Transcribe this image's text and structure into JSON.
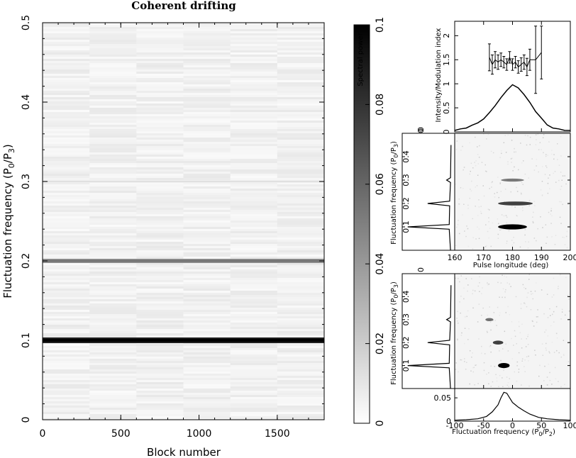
{
  "chart_data": [
    {
      "type": "heatmap",
      "id": "main",
      "title": "Coherent drifting",
      "xlabel": "Block number",
      "ylabel": "Fluctuation frequency (P0/P3)",
      "xlim": [
        0,
        1800
      ],
      "ylim": [
        0,
        0.5
      ],
      "xticks": [
        "0",
        "500",
        "1000",
        "1500"
      ],
      "yticks": [
        "0",
        "0.1",
        "0.2",
        "0.3",
        "0.4",
        "0.5"
      ],
      "features": [
        {
          "y": 0.1,
          "power": 0.1
        },
        {
          "y": 0.2,
          "power": 0.055
        },
        {
          "y": 0.3,
          "power": 0.012
        }
      ]
    },
    {
      "type": "heatmap",
      "id": "colorbar",
      "ylabel": "Spectral power",
      "ylim": [
        0,
        0.1
      ],
      "yticks": [
        "0",
        "0.02",
        "0.04",
        "0.06",
        "0.08",
        "0.1"
      ]
    },
    {
      "type": "line",
      "id": "profile",
      "ylabel": "Intensity/Modulation index",
      "xlim": [
        160,
        200
      ],
      "ylim": [
        0,
        2.3
      ],
      "yticks": [
        "0",
        "0.5",
        "1",
        "1.5",
        "2"
      ],
      "top_label": "0",
      "series": [
        {
          "role": "intensity",
          "x": [
            160,
            162,
            164,
            166,
            168,
            170,
            172,
            174,
            176,
            178,
            180,
            182,
            184,
            186,
            188,
            190,
            192,
            194,
            196,
            198,
            200
          ],
          "values": [
            0.03,
            0.05,
            0.08,
            0.12,
            0.18,
            0.27,
            0.4,
            0.55,
            0.72,
            0.88,
            0.98,
            0.92,
            0.78,
            0.6,
            0.42,
            0.27,
            0.16,
            0.09,
            0.05,
            0.04,
            0.03
          ]
        },
        {
          "role": "modulation_index",
          "x": [
            172,
            173,
            174,
            175,
            176,
            177,
            178,
            179,
            180,
            181,
            182,
            183,
            184,
            185,
            186,
            188,
            190
          ],
          "values": [
            1.55,
            1.4,
            1.5,
            1.45,
            1.5,
            1.45,
            1.4,
            1.55,
            1.4,
            1.45,
            1.35,
            1.4,
            1.45,
            1.35,
            1.5,
            1.5,
            1.65
          ],
          "errors": [
            0.28,
            0.2,
            0.17,
            0.15,
            0.14,
            0.12,
            0.12,
            0.12,
            0.12,
            0.12,
            0.13,
            0.14,
            0.15,
            0.18,
            0.22,
            0.7,
            0.55
          ]
        }
      ]
    },
    {
      "type": "heatmap",
      "id": "lrfs",
      "xlabel": "Pulse longitude (deg)",
      "ylabel": "Fluctuation frequency (P0/P3)",
      "xlim": [
        160,
        200
      ],
      "ylim": [
        0,
        0.5
      ],
      "xticks": [
        "160",
        "170",
        "180",
        "190",
        "200"
      ],
      "yticks": [
        "0.1",
        "0.2",
        "0.3",
        "0.4"
      ],
      "top_label": "0",
      "features": [
        {
          "y": 0.1,
          "x_center": 180,
          "x_width": 10,
          "power": 1.0
        },
        {
          "y": 0.2,
          "x_center": 181,
          "x_width": 12,
          "power": 0.6
        },
        {
          "y": 0.3,
          "x_center": 180,
          "x_width": 8,
          "power": 0.25
        }
      ],
      "side_spectrum": {
        "y": [
          0.0,
          0.09,
          0.1,
          0.11,
          0.19,
          0.2,
          0.21,
          0.29,
          0.3,
          0.31,
          0.45
        ],
        "values": [
          0.03,
          0.06,
          1.0,
          0.06,
          0.05,
          0.55,
          0.05,
          0.03,
          0.12,
          0.03,
          0.02
        ]
      }
    },
    {
      "type": "heatmap",
      "id": "2dfs",
      "xlabel": "Fluctuation frequency (P0/P2)",
      "ylabel": "Fluctuation frequency (P0/P3)",
      "xlim": [
        -100,
        100
      ],
      "ylim": [
        0,
        0.5
      ],
      "xticks": [
        "-100",
        "-50",
        "0",
        "50",
        "100"
      ],
      "yticks": [
        "0.1",
        "0.2",
        "0.3",
        "0.4"
      ],
      "top_label": "0",
      "features": [
        {
          "y": 0.1,
          "x_center": -15,
          "x_width": 20,
          "power": 1.0
        },
        {
          "y": 0.2,
          "x_center": -25,
          "x_width": 18,
          "power": 0.6
        },
        {
          "y": 0.3,
          "x_center": -40,
          "x_width": 14,
          "power": 0.3
        }
      ],
      "side_spectrum": {
        "y": [
          0.0,
          0.09,
          0.1,
          0.11,
          0.19,
          0.2,
          0.21,
          0.29,
          0.3,
          0.31,
          0.45
        ],
        "values": [
          0.03,
          0.06,
          1.0,
          0.06,
          0.05,
          0.55,
          0.05,
          0.03,
          0.12,
          0.03,
          0.02
        ]
      }
    },
    {
      "type": "line",
      "id": "p2-spectrum",
      "xlim": [
        -100,
        100
      ],
      "ylim": [
        0,
        0.07
      ],
      "yticks": [
        "0",
        "0.05"
      ],
      "series": [
        {
          "x": [
            -100,
            -80,
            -60,
            -45,
            -35,
            -25,
            -20,
            -15,
            -10,
            -5,
            0,
            5,
            10,
            20,
            30,
            45,
            60,
            80,
            100
          ],
          "values": [
            0.002,
            0.003,
            0.005,
            0.01,
            0.02,
            0.035,
            0.05,
            0.062,
            0.06,
            0.05,
            0.04,
            0.035,
            0.03,
            0.022,
            0.015,
            0.008,
            0.005,
            0.003,
            0.002
          ]
        }
      ]
    }
  ]
}
